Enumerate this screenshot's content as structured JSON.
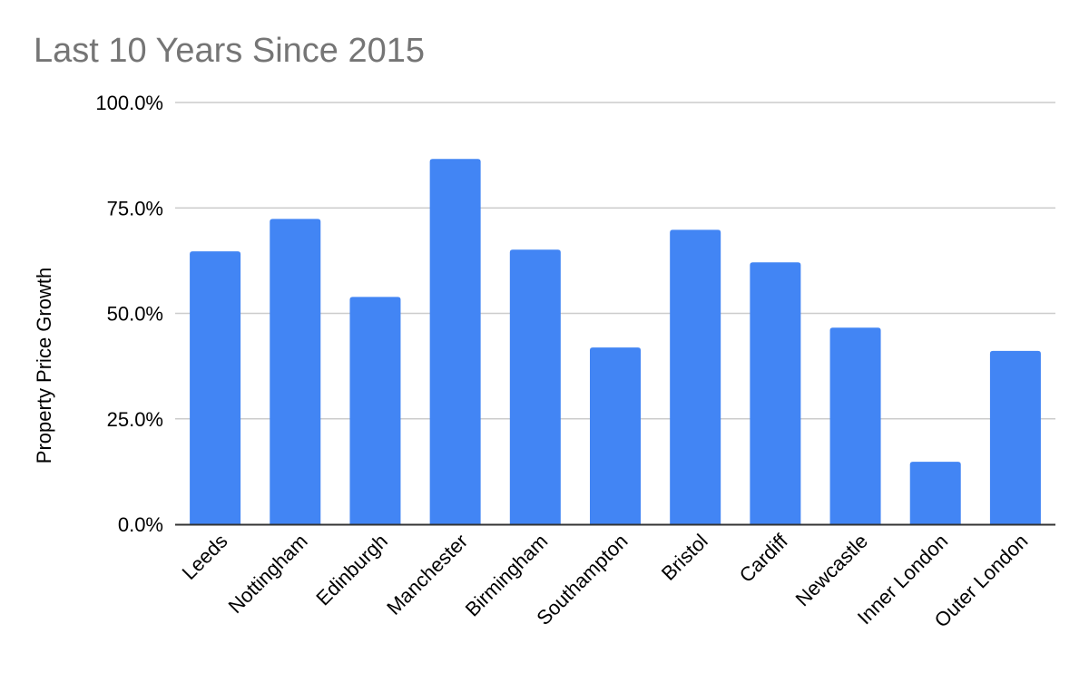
{
  "chart_data": {
    "type": "bar",
    "title": "Last 10 Years Since 2015",
    "xlabel": "",
    "ylabel": "Property Price Growth",
    "categories": [
      "Leeds",
      "Nottingham",
      "Edinburgh",
      "Manchester",
      "Birmingham",
      "Southampton",
      "Bristol",
      "Cardiff",
      "Newcastle",
      "Inner London",
      "Outer London"
    ],
    "values": [
      64.7,
      72.4,
      53.9,
      86.6,
      65.1,
      41.9,
      69.8,
      62.1,
      46.6,
      14.8,
      41.1
    ],
    "ylim": [
      0,
      100
    ],
    "yticks": [
      "0.0%",
      "25.0%",
      "50.0%",
      "75.0%",
      "100.0%"
    ],
    "grid": true,
    "legend": "none",
    "bar_color": "#4285f4"
  }
}
